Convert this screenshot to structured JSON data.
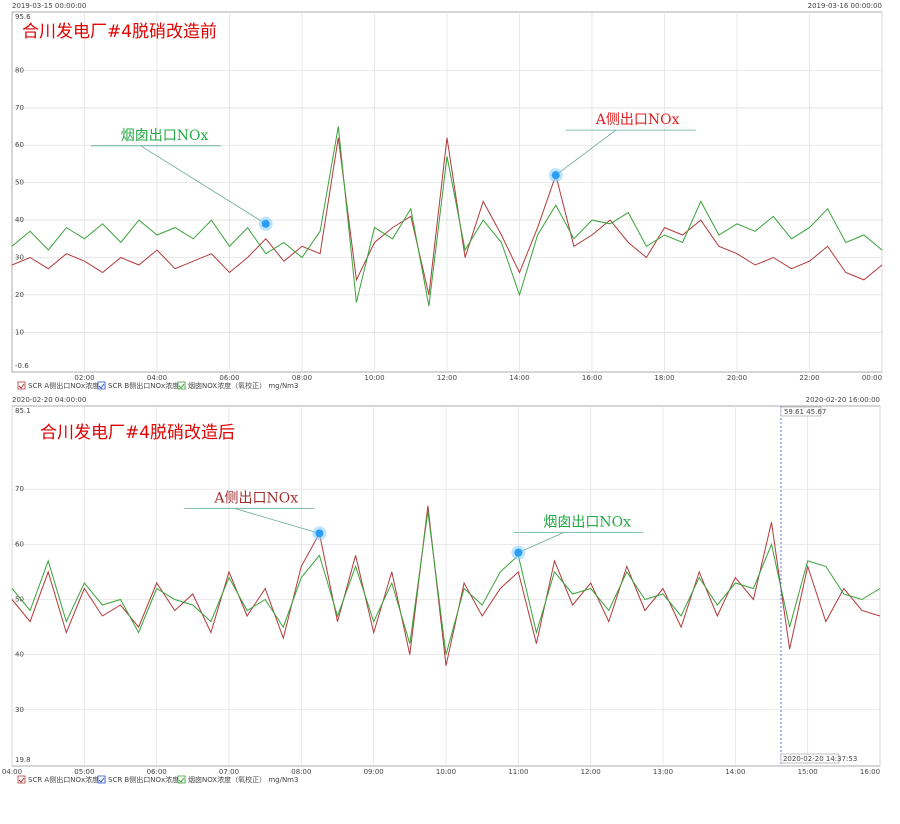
{
  "chart_data": [
    {
      "type": "line",
      "title": "合川发电厂#4脱硝改造前",
      "start_label": "2019-03-15 00:00:00",
      "end_label": "2019-03-16 00:00:00",
      "xlim": [
        0,
        24
      ],
      "xticks": [
        {
          "value": 2,
          "label": "02:00"
        },
        {
          "value": 4,
          "label": "04:00"
        },
        {
          "value": 6,
          "label": "06:00"
        },
        {
          "value": 8,
          "label": "08:00"
        },
        {
          "value": 10,
          "label": "10:00"
        },
        {
          "value": 12,
          "label": "12:00"
        },
        {
          "value": 14,
          "label": "14:00"
        },
        {
          "value": 16,
          "label": "16:00"
        },
        {
          "value": 18,
          "label": "18:00"
        },
        {
          "value": 20,
          "label": "20:00"
        },
        {
          "value": 22,
          "label": "22:00"
        },
        {
          "value": 24,
          "label": "00:00"
        }
      ],
      "ylim": [
        -0.6,
        95.6
      ],
      "yticks": [
        10,
        20,
        30,
        40,
        50,
        60,
        70,
        80
      ],
      "grid": true,
      "x": [
        0,
        0.5,
        1,
        1.5,
        2,
        2.5,
        3,
        3.5,
        4,
        4.5,
        5,
        5.5,
        6,
        6.5,
        7,
        7.5,
        8,
        8.5,
        9,
        9.5,
        10,
        10.5,
        11,
        11.5,
        12,
        12.5,
        13,
        13.5,
        14,
        14.5,
        15,
        15.5,
        16,
        16.5,
        17,
        17.5,
        18,
        18.5,
        19,
        19.5,
        20,
        20.5,
        21,
        21.5,
        22,
        22.5,
        23,
        23.5,
        24
      ],
      "series": [
        {
          "name": "SCR A侧出口NOx浓度高",
          "color": "#b03a3a",
          "values": [
            28,
            30,
            27,
            31,
            29,
            26,
            30,
            28,
            32,
            27,
            29,
            31,
            26,
            30,
            35,
            29,
            33,
            31,
            62,
            24,
            34,
            38,
            41,
            20,
            62,
            30,
            45,
            36,
            26,
            38,
            52,
            33,
            36,
            40,
            34,
            30,
            38,
            36,
            40,
            33,
            31,
            28,
            30,
            27,
            29,
            33,
            26,
            24,
            28
          ]
        },
        {
          "name": "SCR B侧出口NOx浓度高",
          "color": "#3355cc",
          "values": [
            null,
            null,
            null,
            null,
            null,
            null,
            null,
            null,
            null,
            null,
            null,
            null,
            null,
            null,
            null,
            null,
            null,
            null,
            null,
            null,
            null,
            null,
            null,
            null,
            null,
            null,
            null,
            null,
            null,
            null,
            null,
            null,
            null,
            null,
            null,
            null,
            null,
            null,
            null,
            null,
            null,
            null,
            null,
            null,
            null,
            null,
            null,
            null,
            null
          ]
        },
        {
          "name": "烟囱NOX浓度（氧校正） mg/Nm3",
          "color": "#3aa23a",
          "values": [
            33,
            37,
            32,
            38,
            35,
            39,
            34,
            40,
            36,
            38,
            35,
            40,
            33,
            38,
            31,
            34,
            30,
            37,
            65,
            18,
            38,
            35,
            43,
            17,
            57,
            32,
            40,
            34,
            20,
            36,
            44,
            35,
            40,
            39,
            42,
            33,
            36,
            34,
            45,
            36,
            39,
            37,
            41,
            35,
            38,
            43,
            34,
            36,
            32
          ]
        }
      ],
      "annotations": [
        {
          "text": "烟囱出口NOx",
          "x": 7,
          "y": 39,
          "color": "#22aa44"
        },
        {
          "text": "A侧出口NOx",
          "x": 15,
          "y": 52,
          "color": "#e02020"
        }
      ]
    },
    {
      "type": "line",
      "title": "合川发电厂#4脱硝改造后",
      "start_label": "2020-02-20 04:00:00",
      "end_label": "2020-02-20 16:00:00",
      "xlim": [
        4,
        16
      ],
      "xticks": [
        {
          "value": 4,
          "label": "04:00"
        },
        {
          "value": 5,
          "label": "05:00"
        },
        {
          "value": 6,
          "label": "06:00"
        },
        {
          "value": 7,
          "label": "07:00"
        },
        {
          "value": 8,
          "label": "08:00"
        },
        {
          "value": 9,
          "label": "09:00"
        },
        {
          "value": 10,
          "label": "10:00"
        },
        {
          "value": 11,
          "label": "11:00"
        },
        {
          "value": 12,
          "label": "12:00"
        },
        {
          "value": 13,
          "label": "13:00"
        },
        {
          "value": 14,
          "label": "14:00"
        },
        {
          "value": 15,
          "label": "15:00"
        },
        {
          "value": 16,
          "label": "16:00"
        }
      ],
      "ylim": [
        19.8,
        85.1
      ],
      "yticks": [
        30,
        40,
        50,
        60,
        70
      ],
      "grid": true,
      "x": [
        4,
        4.25,
        4.5,
        4.75,
        5,
        5.25,
        5.5,
        5.75,
        6,
        6.25,
        6.5,
        6.75,
        7,
        7.25,
        7.5,
        7.75,
        8,
        8.25,
        8.5,
        8.75,
        9,
        9.25,
        9.5,
        9.75,
        10,
        10.25,
        10.5,
        10.75,
        11,
        11.25,
        11.5,
        11.75,
        12,
        12.25,
        12.5,
        12.75,
        13,
        13.25,
        13.5,
        13.75,
        14,
        14.25,
        14.5,
        14.75,
        15,
        15.25,
        15.5,
        15.75,
        16
      ],
      "series": [
        {
          "name": "SCR A侧出口NOx浓度高",
          "color": "#b03a3a",
          "values": [
            50,
            46,
            55,
            44,
            52,
            47,
            49,
            45,
            53,
            48,
            51,
            44,
            55,
            47,
            52,
            43,
            56,
            62,
            46,
            58,
            44,
            55,
            40,
            67,
            38,
            53,
            47,
            52,
            55,
            42,
            57,
            49,
            53,
            46,
            56,
            48,
            52,
            45,
            55,
            47,
            54,
            50,
            64,
            41,
            56,
            46,
            52,
            48,
            47
          ]
        },
        {
          "name": "SCR B侧出口NOx浓度高",
          "color": "#3355cc",
          "values": [
            null,
            null,
            null,
            null,
            null,
            null,
            null,
            null,
            null,
            null,
            null,
            null,
            null,
            null,
            null,
            null,
            null,
            null,
            null,
            null,
            null,
            null,
            null,
            null,
            null,
            null,
            null,
            null,
            null,
            null,
            null,
            null,
            null,
            null,
            null,
            null,
            null,
            null,
            null,
            null,
            null,
            null,
            null,
            null,
            null,
            null,
            null,
            null,
            null
          ]
        },
        {
          "name": "烟囱NOX浓度（氧校正） mg/Nm3",
          "color": "#3aa23a",
          "values": [
            52,
            48,
            57,
            46,
            53,
            49,
            50,
            44,
            52,
            50,
            49,
            46,
            54,
            48,
            50,
            45,
            54,
            58,
            47,
            56,
            46,
            53,
            42,
            66,
            40,
            52,
            49,
            55,
            58,
            44,
            55,
            51,
            52,
            48,
            55,
            50,
            51,
            47,
            54,
            49,
            53,
            52,
            60,
            45,
            57,
            56,
            51,
            50,
            52
          ]
        }
      ],
      "annotations": [
        {
          "text": "A侧出口NOx",
          "x": 8.25,
          "y": 62,
          "color": "#a03030"
        },
        {
          "text": "烟囱出口NOx",
          "x": 11,
          "y": 58.5,
          "color": "#22aa44"
        }
      ],
      "cursor": {
        "x": 14.631,
        "label": "2020-02-20 14:37:53",
        "readout": "59.61  45.67"
      }
    }
  ]
}
